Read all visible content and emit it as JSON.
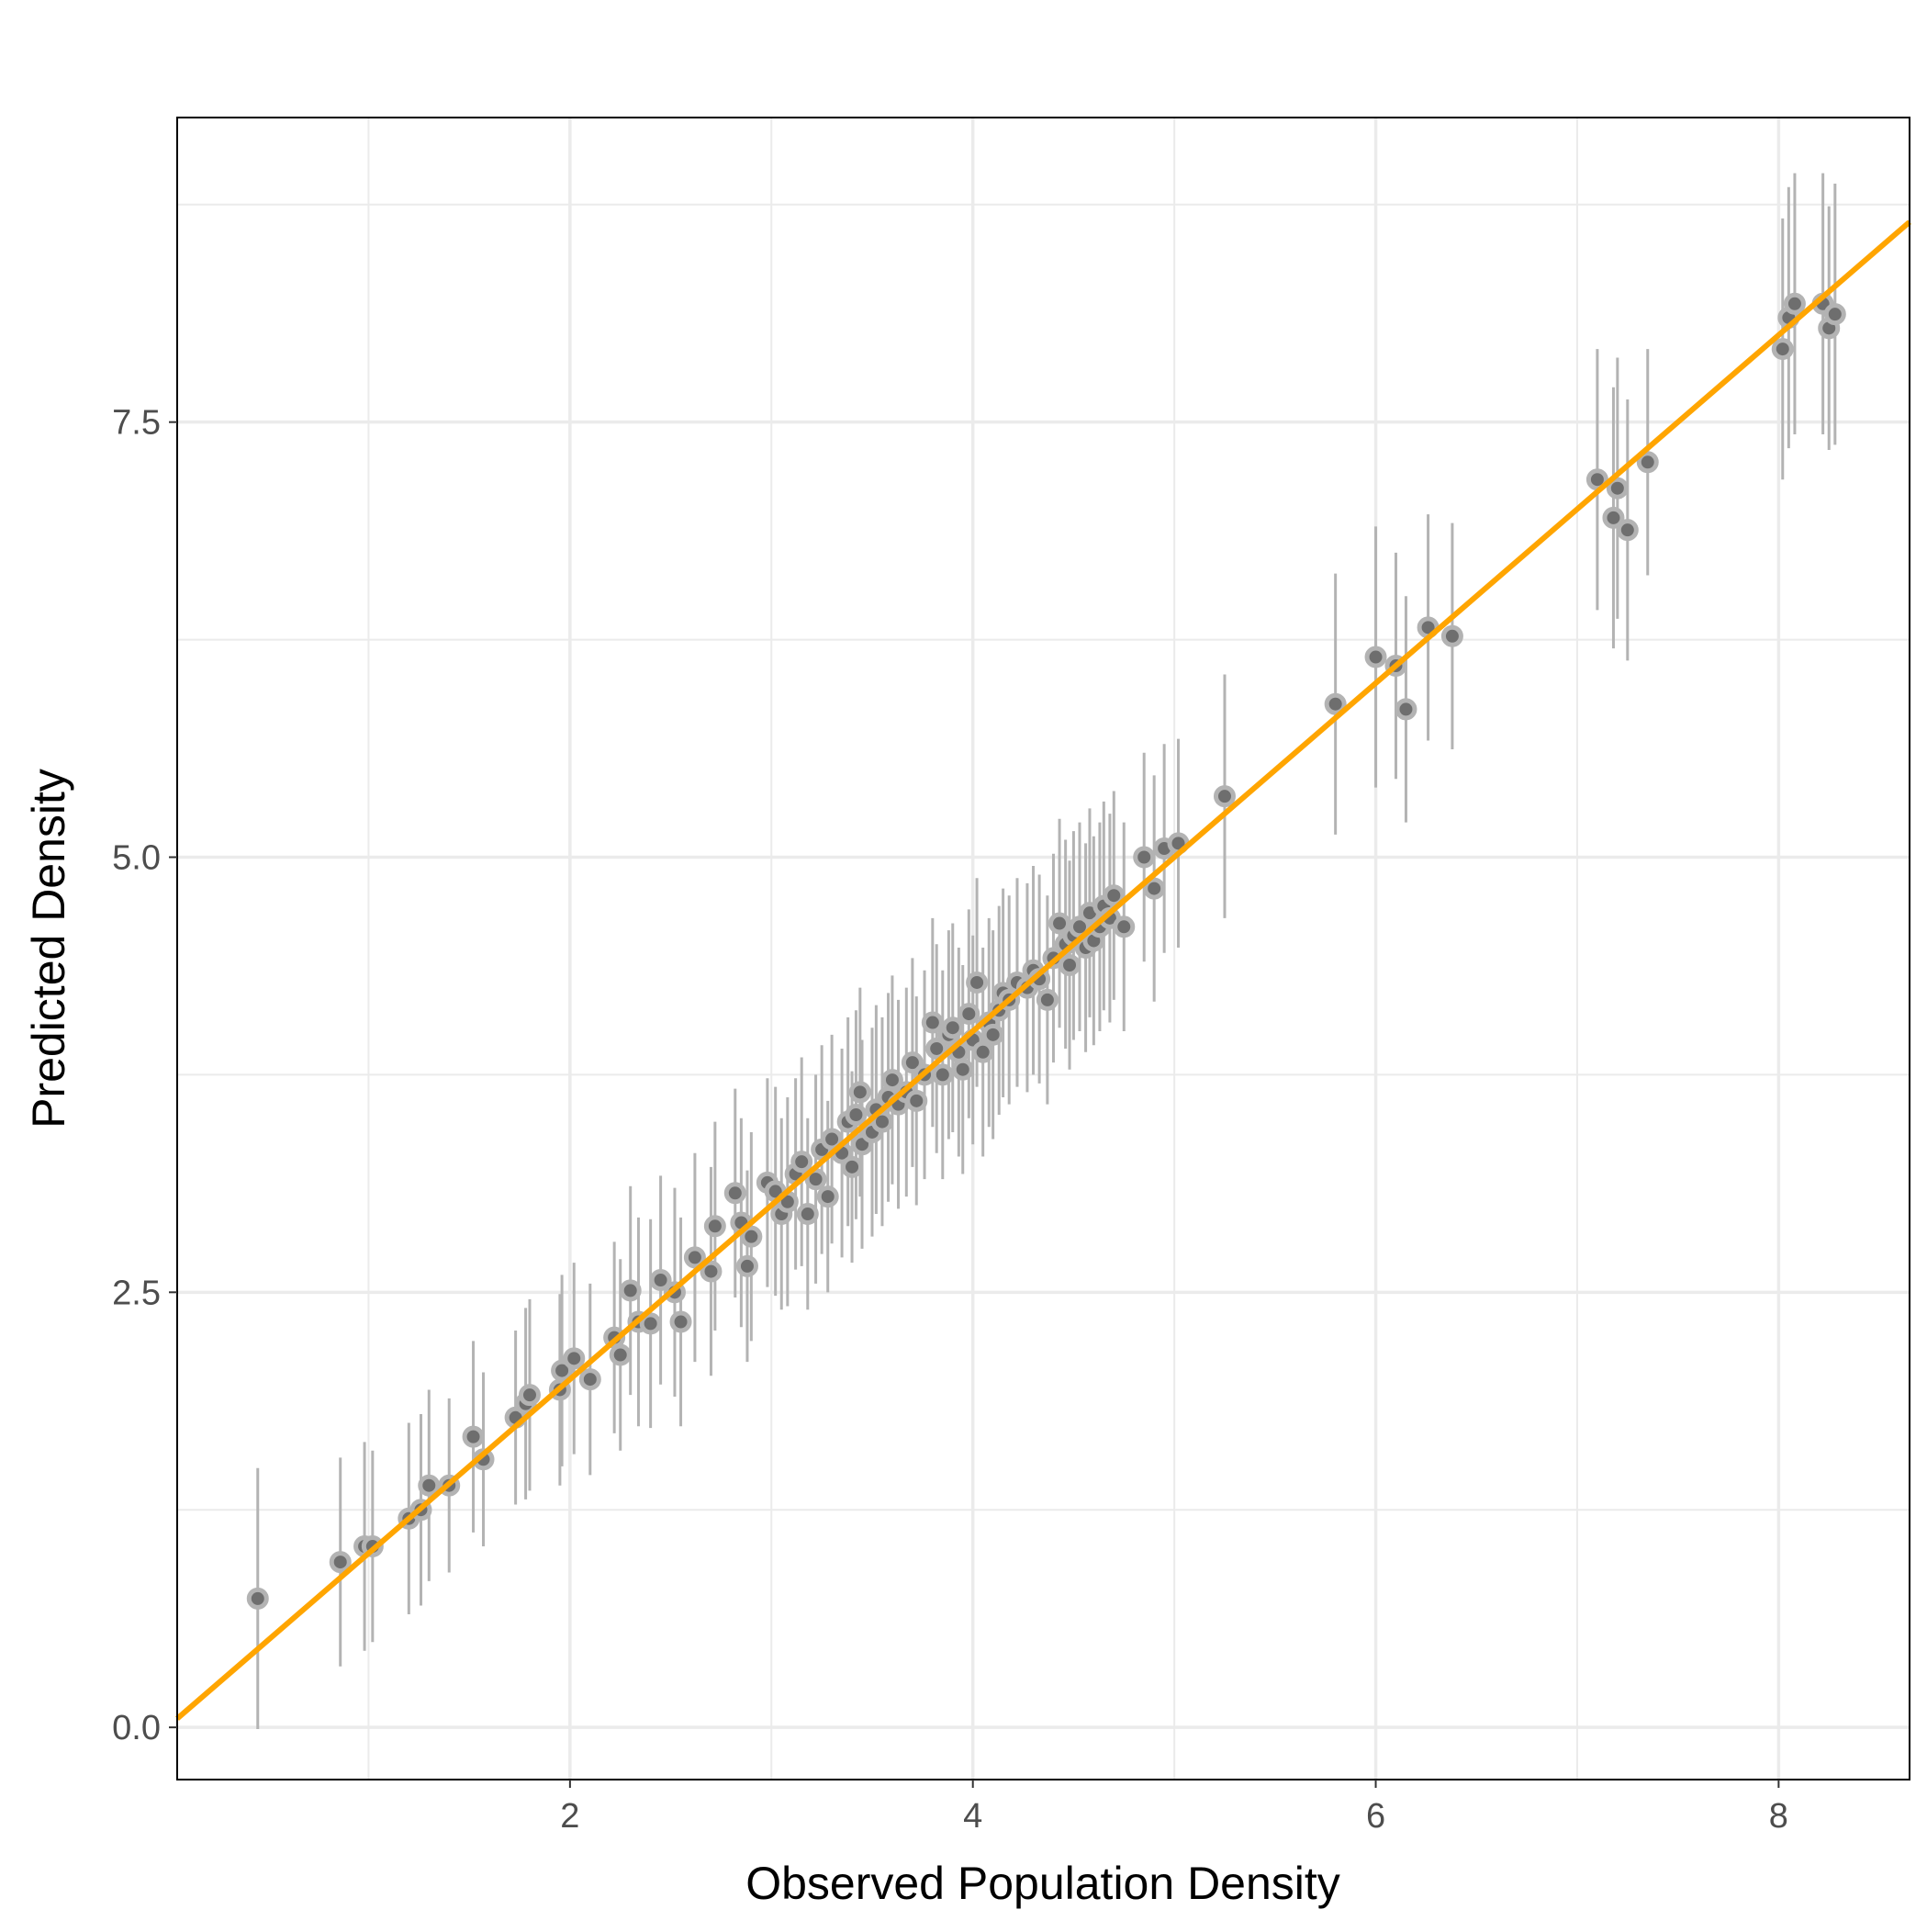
{
  "chart_data": {
    "type": "scatter",
    "xlabel": "Observed Population Density",
    "ylabel": "Predicted Density",
    "xlim": [
      0.05,
      8.65
    ],
    "ylim": [
      -0.3,
      9.25
    ],
    "x_ticks": [
      2,
      4,
      6,
      8
    ],
    "x_tick_labels": [
      "2",
      "4",
      "6",
      "8"
    ],
    "y_ticks": [
      0.0,
      2.5,
      5.0,
      7.5
    ],
    "y_tick_labels": [
      "0.0",
      "2.5",
      "5.0",
      "7.5"
    ],
    "grid": true,
    "legend": "none",
    "colors": {
      "point_fill": "#6e6e6e",
      "point_outline": "#b3b3b3",
      "error_bar": "#b3b3b3",
      "fit_line": "#FFA500",
      "grid": "#ebebeb",
      "panel_border": "#000000"
    },
    "fit_line": {
      "intercept": 0.0,
      "slope": 1.0,
      "x_range": [
        0.05,
        8.65
      ]
    },
    "points": [
      [
        0.45,
        0.74,
        0.75
      ],
      [
        0.86,
        0.95,
        0.6
      ],
      [
        0.98,
        1.04,
        0.6
      ],
      [
        1.02,
        1.04,
        0.55
      ],
      [
        1.2,
        1.2,
        0.55
      ],
      [
        1.26,
        1.25,
        0.55
      ],
      [
        1.3,
        1.39,
        0.55
      ],
      [
        1.4,
        1.39,
        0.5
      ],
      [
        1.52,
        1.67,
        0.55
      ],
      [
        1.57,
        1.54,
        0.5
      ],
      [
        1.73,
        1.78,
        0.5
      ],
      [
        1.78,
        1.86,
        0.55
      ],
      [
        1.8,
        1.91,
        0.55
      ],
      [
        1.95,
        1.94,
        0.55
      ],
      [
        1.96,
        2.05,
        0.55
      ],
      [
        2.02,
        2.12,
        0.55
      ],
      [
        2.1,
        2.0,
        0.55
      ],
      [
        2.22,
        2.24,
        0.55
      ],
      [
        2.25,
        2.14,
        0.55
      ],
      [
        2.3,
        2.51,
        0.6
      ],
      [
        2.34,
        2.33,
        0.6
      ],
      [
        2.4,
        2.32,
        0.6
      ],
      [
        2.45,
        2.57,
        0.6
      ],
      [
        2.52,
        2.5,
        0.6
      ],
      [
        2.55,
        2.33,
        0.6
      ],
      [
        2.62,
        2.7,
        0.6
      ],
      [
        2.7,
        2.62,
        0.6
      ],
      [
        2.72,
        2.88,
        0.6
      ],
      [
        2.82,
        3.07,
        0.6
      ],
      [
        2.85,
        2.9,
        0.6
      ],
      [
        2.88,
        2.65,
        0.55
      ],
      [
        2.9,
        2.82,
        0.6
      ],
      [
        2.98,
        3.13,
        0.6
      ],
      [
        3.02,
        3.08,
        0.6
      ],
      [
        3.05,
        2.95,
        0.55
      ],
      [
        3.08,
        3.02,
        0.6
      ],
      [
        3.12,
        3.18,
        0.55
      ],
      [
        3.15,
        3.25,
        0.6
      ],
      [
        3.18,
        2.95,
        0.55
      ],
      [
        3.22,
        3.15,
        0.6
      ],
      [
        3.25,
        3.32,
        0.6
      ],
      [
        3.28,
        3.05,
        0.55
      ],
      [
        3.3,
        3.38,
        0.6
      ],
      [
        3.35,
        3.3,
        0.6
      ],
      [
        3.38,
        3.48,
        0.6
      ],
      [
        3.4,
        3.22,
        0.55
      ],
      [
        3.42,
        3.52,
        0.6
      ],
      [
        3.44,
        3.65,
        0.6
      ],
      [
        3.45,
        3.35,
        0.6
      ],
      [
        3.5,
        3.42,
        0.6
      ],
      [
        3.52,
        3.55,
        0.6
      ],
      [
        3.55,
        3.48,
        0.6
      ],
      [
        3.58,
        3.62,
        0.6
      ],
      [
        3.6,
        3.72,
        0.6
      ],
      [
        3.63,
        3.58,
        0.6
      ],
      [
        3.67,
        3.65,
        0.6
      ],
      [
        3.7,
        3.82,
        0.6
      ],
      [
        3.72,
        3.6,
        0.6
      ],
      [
        3.76,
        3.75,
        0.6
      ],
      [
        3.8,
        4.05,
        0.6
      ],
      [
        3.82,
        3.9,
        0.6
      ],
      [
        3.85,
        3.75,
        0.6
      ],
      [
        3.88,
        3.98,
        0.6
      ],
      [
        3.9,
        4.02,
        0.6
      ],
      [
        3.93,
        3.88,
        0.6
      ],
      [
        3.95,
        3.78,
        0.6
      ],
      [
        3.98,
        4.1,
        0.6
      ],
      [
        4.0,
        3.95,
        0.6
      ],
      [
        4.02,
        4.28,
        0.6
      ],
      [
        4.05,
        3.88,
        0.6
      ],
      [
        4.08,
        4.05,
        0.6
      ],
      [
        4.1,
        3.98,
        0.6
      ],
      [
        4.13,
        4.12,
        0.6
      ],
      [
        4.15,
        4.22,
        0.6
      ],
      [
        4.18,
        4.18,
        0.6
      ],
      [
        4.22,
        4.28,
        0.6
      ],
      [
        4.27,
        4.25,
        0.6
      ],
      [
        4.3,
        4.35,
        0.6
      ],
      [
        4.33,
        4.3,
        0.6
      ],
      [
        4.37,
        4.18,
        0.6
      ],
      [
        4.4,
        4.42,
        0.6
      ],
      [
        4.43,
        4.62,
        0.6
      ],
      [
        4.46,
        4.5,
        0.6
      ],
      [
        4.48,
        4.38,
        0.6
      ],
      [
        4.5,
        4.55,
        0.6
      ],
      [
        4.53,
        4.6,
        0.6
      ],
      [
        4.56,
        4.48,
        0.6
      ],
      [
        4.58,
        4.68,
        0.6
      ],
      [
        4.6,
        4.52,
        0.6
      ],
      [
        4.63,
        4.6,
        0.6
      ],
      [
        4.65,
        4.72,
        0.6
      ],
      [
        4.68,
        4.65,
        0.6
      ],
      [
        4.7,
        4.78,
        0.6
      ],
      [
        4.75,
        4.6,
        0.6
      ],
      [
        4.85,
        5.0,
        0.6
      ],
      [
        4.9,
        4.82,
        0.65
      ],
      [
        4.95,
        5.05,
        0.6
      ],
      [
        5.02,
        5.08,
        0.6
      ],
      [
        5.25,
        5.35,
        0.7
      ],
      [
        5.8,
        5.88,
        0.75
      ],
      [
        6.0,
        6.15,
        0.75
      ],
      [
        6.1,
        6.1,
        0.65
      ],
      [
        6.15,
        5.85,
        0.65
      ],
      [
        6.26,
        6.32,
        0.65
      ],
      [
        6.38,
        6.27,
        0.65
      ],
      [
        7.1,
        7.17,
        0.75
      ],
      [
        7.18,
        6.95,
        0.75
      ],
      [
        7.2,
        7.12,
        0.75
      ],
      [
        7.25,
        6.88,
        0.75
      ],
      [
        7.35,
        7.27,
        0.65
      ],
      [
        8.02,
        7.92,
        0.75
      ],
      [
        8.05,
        8.1,
        0.75
      ],
      [
        8.08,
        8.18,
        0.75
      ],
      [
        8.22,
        8.18,
        0.75
      ],
      [
        8.25,
        8.04,
        0.7
      ],
      [
        8.28,
        8.12,
        0.75
      ]
    ]
  }
}
